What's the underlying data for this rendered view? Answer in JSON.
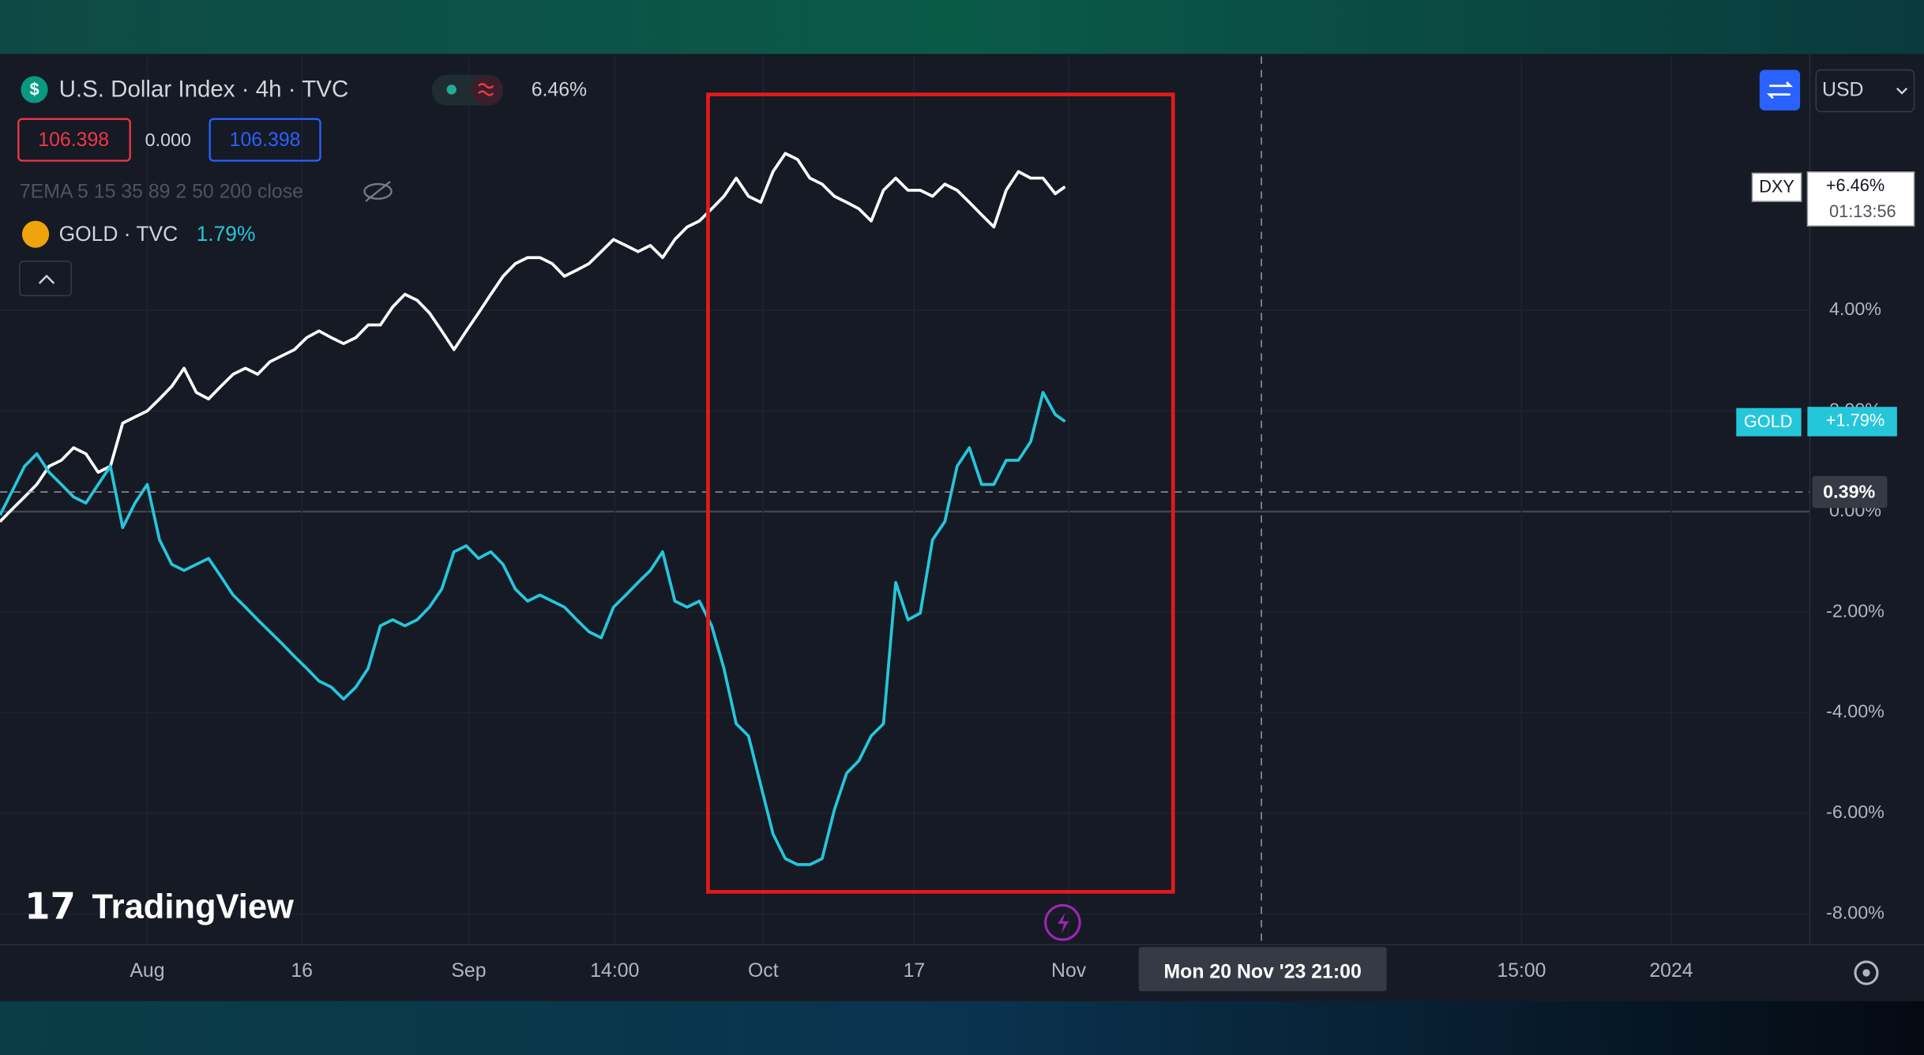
{
  "toolbar": {
    "symbol_icon": "$",
    "symbol": "U.S. Dollar Index · 4h · TVC",
    "change": "6.46%",
    "sell": "106.398",
    "spread": "0.000",
    "buy": "106.398",
    "indicator": "7EMA 5 15 35 89 2 50 200 close",
    "compare_symbol": "GOLD · TVC",
    "compare_change": "1.79%",
    "currency": "USD"
  },
  "watermark": "TradingView",
  "chart_data": {
    "type": "line",
    "grid": true,
    "x": [
      0,
      1,
      2,
      3,
      4,
      5,
      6,
      7,
      8,
      9,
      10,
      11,
      12,
      13,
      14,
      15,
      16,
      17,
      18,
      19,
      20,
      21,
      22,
      23,
      24,
      25,
      26,
      27,
      28,
      29,
      30,
      31,
      32,
      33,
      34,
      35,
      36,
      37,
      38,
      39,
      40,
      41,
      42,
      43,
      44,
      45,
      46,
      47,
      48,
      49,
      50,
      51,
      52,
      53,
      54,
      55,
      56,
      57,
      58,
      59,
      60,
      61,
      62,
      63,
      64,
      65,
      66,
      67,
      68,
      69,
      70,
      71,
      72,
      73,
      74,
      75,
      76,
      77,
      78,
      79,
      80,
      81,
      82,
      83,
      84,
      85,
      86,
      86.8
    ],
    "xlim": [
      0,
      147.5
    ],
    "xticks": [
      {
        "value": 12,
        "label": "Aug"
      },
      {
        "value": 24.6,
        "label": "16"
      },
      {
        "value": 38.2,
        "label": "Sep"
      },
      {
        "value": 50.1,
        "label": "14:00"
      },
      {
        "value": 62.2,
        "label": "Oct"
      },
      {
        "value": 74.5,
        "label": "17"
      },
      {
        "value": 87.1,
        "label": "Nov"
      },
      {
        "value": 124,
        "label": "15:00"
      },
      {
        "value": 136.2,
        "label": "2024"
      }
    ],
    "ylim": [
      -8.6,
      9.05
    ],
    "yticks": [
      {
        "value": 4,
        "label": "4.00%"
      },
      {
        "value": 2,
        "label": "2.00%"
      },
      {
        "value": 0,
        "label": "0.00%"
      },
      {
        "value": -2,
        "label": "-2.00%"
      },
      {
        "value": -4,
        "label": "-4.00%"
      },
      {
        "value": -6,
        "label": "-6.00%"
      },
      {
        "value": -8,
        "label": "-8.00%"
      }
    ],
    "series": [
      {
        "name": "DXY",
        "color": "#ffffff",
        "last_label": "+6.46%",
        "countdown": "01:13:56",
        "values": [
          -0.2,
          0.05,
          0.29,
          0.54,
          0.9,
          1.02,
          1.27,
          1.15,
          0.78,
          0.9,
          1.76,
          1.88,
          2.0,
          2.24,
          2.49,
          2.85,
          2.37,
          2.24,
          2.49,
          2.73,
          2.85,
          2.73,
          2.98,
          3.1,
          3.22,
          3.46,
          3.59,
          3.46,
          3.34,
          3.46,
          3.71,
          3.71,
          4.07,
          4.32,
          4.2,
          3.95,
          3.59,
          3.22,
          3.59,
          3.95,
          4.32,
          4.68,
          4.93,
          5.05,
          5.05,
          4.93,
          4.68,
          4.8,
          4.93,
          5.17,
          5.41,
          5.29,
          5.17,
          5.29,
          5.05,
          5.41,
          5.66,
          5.78,
          6.02,
          6.27,
          6.63,
          6.27,
          6.15,
          6.76,
          7.12,
          7.0,
          6.63,
          6.51,
          6.27,
          6.15,
          6.02,
          5.78,
          6.39,
          6.63,
          6.39,
          6.39,
          6.27,
          6.51,
          6.39,
          6.15,
          5.9,
          5.66,
          6.39,
          6.76,
          6.63,
          6.63,
          6.32,
          6.46
        ]
      },
      {
        "name": "GOLD",
        "color": "#26c6da",
        "last_label": "+1.79%",
        "values": [
          -0.07,
          0.41,
          0.9,
          1.15,
          0.78,
          0.54,
          0.29,
          0.17,
          0.54,
          0.9,
          -0.32,
          0.17,
          0.54,
          -0.56,
          -1.05,
          -1.17,
          -1.05,
          -0.93,
          -1.29,
          -1.66,
          -1.9,
          -2.15,
          -2.39,
          -2.63,
          -2.88,
          -3.12,
          -3.37,
          -3.49,
          -3.73,
          -3.49,
          -3.12,
          -2.27,
          -2.15,
          -2.27,
          -2.15,
          -1.9,
          -1.54,
          -0.8,
          -0.68,
          -0.93,
          -0.8,
          -1.05,
          -1.54,
          -1.78,
          -1.66,
          -1.78,
          -1.9,
          -2.15,
          -2.39,
          -2.51,
          -1.9,
          -1.66,
          -1.41,
          -1.17,
          -0.8,
          -1.78,
          -1.9,
          -1.78,
          -2.27,
          -3.12,
          -4.22,
          -4.46,
          -5.44,
          -6.41,
          -6.9,
          -7.02,
          -7.02,
          -6.9,
          -5.93,
          -5.2,
          -4.95,
          -4.46,
          -4.22,
          -1.41,
          -2.15,
          -2.02,
          -0.56,
          -0.2,
          0.9,
          1.27,
          0.54,
          0.54,
          1.02,
          1.02,
          1.39,
          2.37,
          1.93,
          1.79
        ]
      }
    ],
    "crosshair": {
      "y": 0.39,
      "label": "0.39%",
      "time_label": "Mon 20 Nov '23  21:00"
    }
  }
}
